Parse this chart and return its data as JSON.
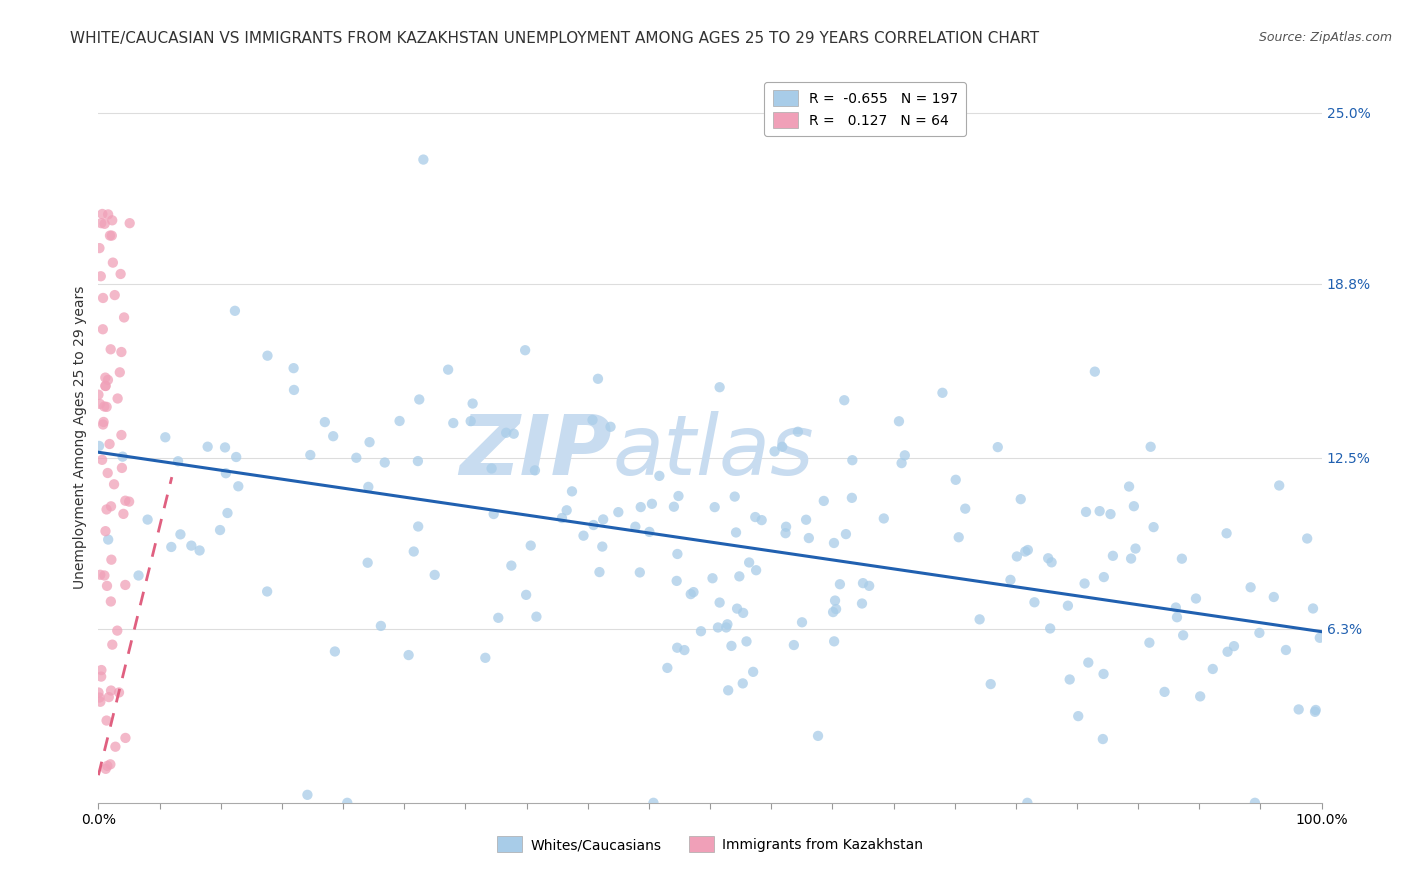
{
  "title": "WHITE/CAUCASIAN VS IMMIGRANTS FROM KAZAKHSTAN UNEMPLOYMENT AMONG AGES 25 TO 29 YEARS CORRELATION CHART",
  "source": "Source: ZipAtlas.com",
  "ylabel": "Unemployment Among Ages 25 to 29 years",
  "watermark": "ZIPatlas",
  "blue_label": "Whites/Caucasians",
  "pink_label": "Immigrants from Kazakhstan",
  "blue_R": -0.655,
  "blue_N": 197,
  "pink_R": 0.127,
  "pink_N": 64,
  "blue_color": "#A8CCE8",
  "pink_color": "#F0A0B8",
  "blue_line_color": "#2060B0",
  "pink_line_color": "#E06080",
  "xmin": 0.0,
  "xmax": 1.0,
  "ymin": 0.0,
  "ymax": 0.265,
  "right_yticks": [
    0.063,
    0.125,
    0.188,
    0.25
  ],
  "right_yticklabels": [
    "6.3%",
    "12.5%",
    "18.8%",
    "25.0%"
  ],
  "xtick_labels_outer": [
    "0.0%",
    "100.0%"
  ],
  "xtick_vals_outer": [
    0.0,
    1.0
  ],
  "title_fontsize": 11,
  "axis_fontsize": 10,
  "watermark_fontsize": 60,
  "watermark_color": "#C8DCF0",
  "background_color": "#FFFFFF",
  "blue_intercept": 0.127,
  "blue_slope": -0.065,
  "pink_intercept": 0.01,
  "pink_slope": 1.8
}
